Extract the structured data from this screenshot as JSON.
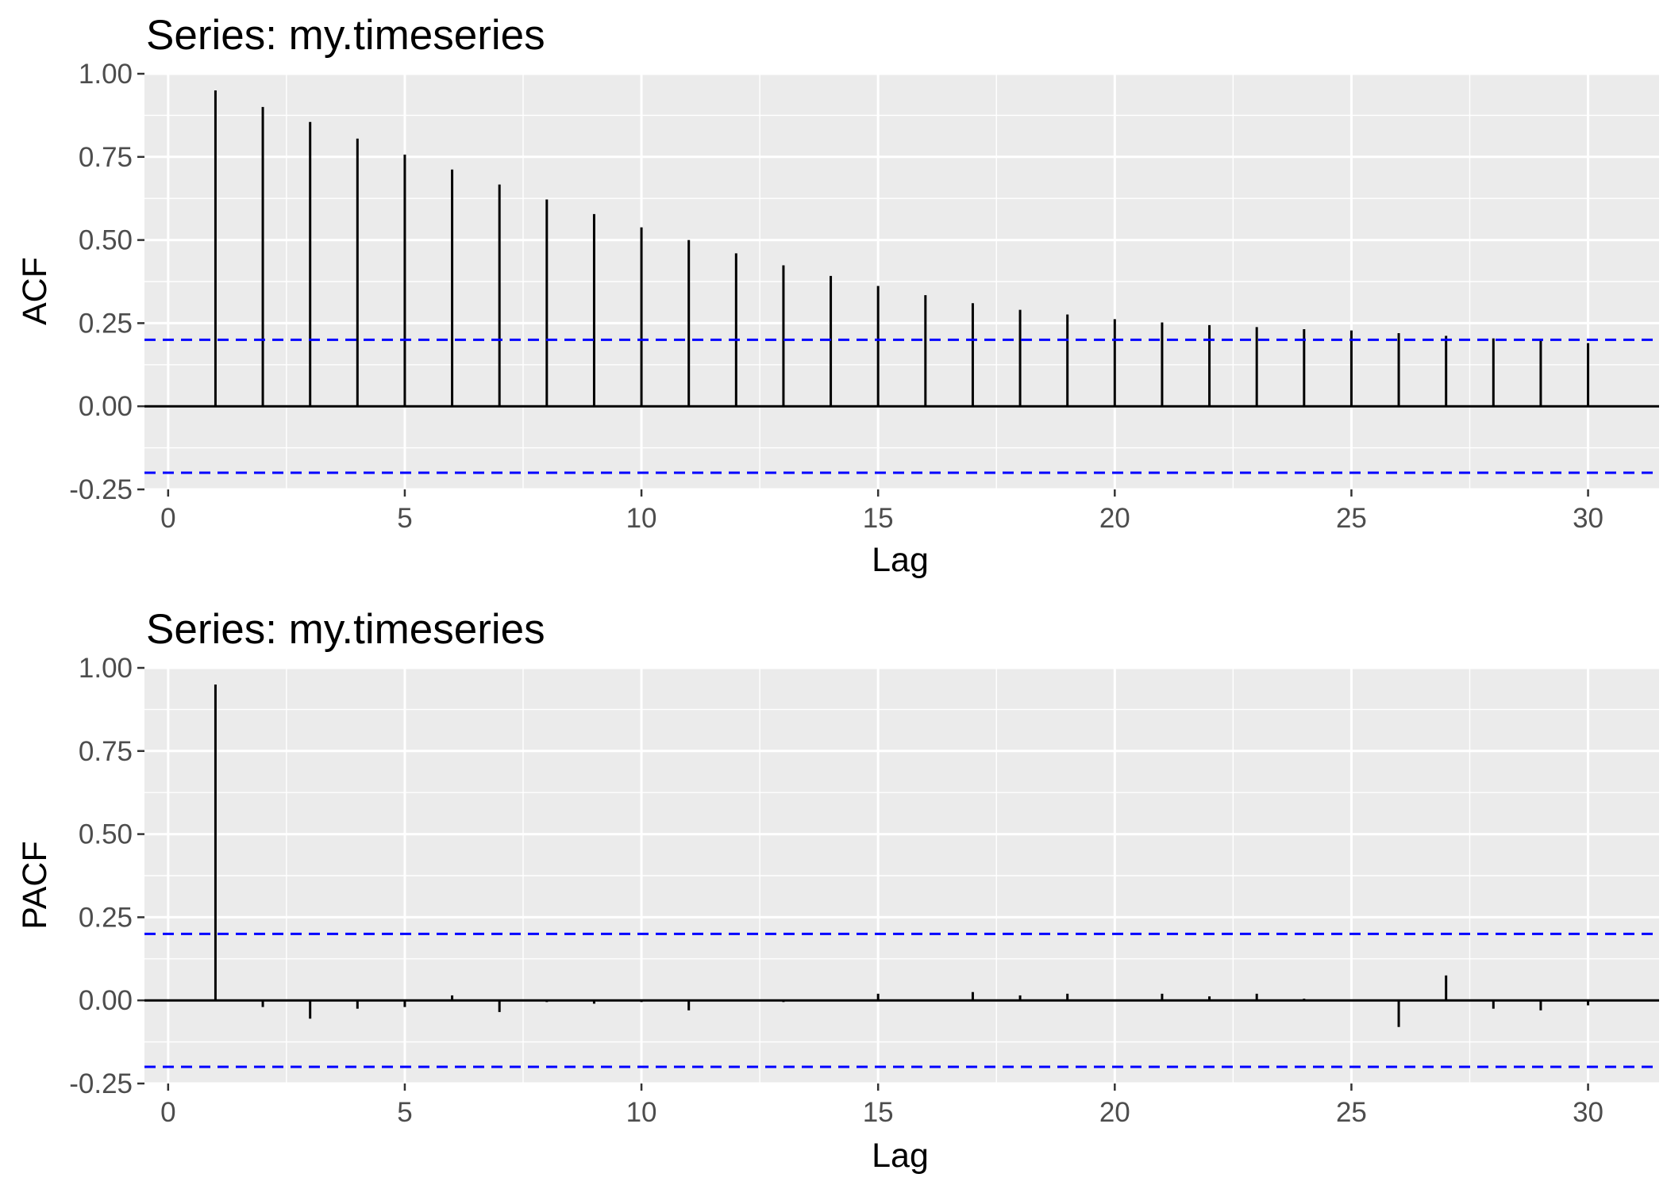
{
  "chart_data": [
    {
      "type": "bar",
      "title": "Series: my.timeseries",
      "xlabel": "Lag",
      "ylabel": "ACF",
      "xlim": [
        -0.5,
        31.5
      ],
      "ylim": [
        -0.25,
        1.0
      ],
      "x_ticks": [
        "0",
        "5",
        "10",
        "15",
        "20",
        "25",
        "30"
      ],
      "y_ticks": [
        "-0.25",
        "0.00",
        "0.25",
        "0.50",
        "0.75",
        "1.00"
      ],
      "grid": true,
      "ci_bounds": [
        0.2,
        -0.2
      ],
      "ci_color": "#0000ff",
      "lags": [
        1,
        2,
        3,
        4,
        5,
        6,
        7,
        8,
        9,
        10,
        11,
        12,
        13,
        14,
        15,
        16,
        17,
        18,
        19,
        20,
        21,
        22,
        23,
        24,
        25,
        26,
        27,
        28,
        29,
        30
      ],
      "values": [
        0.95,
        0.9,
        0.855,
        0.805,
        0.757,
        0.712,
        0.667,
        0.622,
        0.578,
        0.538,
        0.5,
        0.46,
        0.424,
        0.392,
        0.362,
        0.334,
        0.31,
        0.29,
        0.276,
        0.262,
        0.252,
        0.244,
        0.238,
        0.232,
        0.228,
        0.22,
        0.212,
        0.204,
        0.198,
        0.19
      ]
    },
    {
      "type": "bar",
      "title": "Series: my.timeseries",
      "xlabel": "Lag",
      "ylabel": "PACF",
      "xlim": [
        -0.5,
        31.5
      ],
      "ylim": [
        -0.25,
        1.0
      ],
      "x_ticks": [
        "0",
        "5",
        "10",
        "15",
        "20",
        "25",
        "30"
      ],
      "y_ticks": [
        "-0.25",
        "0.00",
        "0.25",
        "0.50",
        "0.75",
        "1.00"
      ],
      "grid": true,
      "ci_bounds": [
        0.2,
        -0.2
      ],
      "ci_color": "#0000ff",
      "lags": [
        1,
        2,
        3,
        4,
        5,
        6,
        7,
        8,
        9,
        10,
        11,
        12,
        13,
        14,
        15,
        16,
        17,
        18,
        19,
        20,
        21,
        22,
        23,
        24,
        25,
        26,
        27,
        28,
        29,
        30
      ],
      "values": [
        0.95,
        -0.02,
        -0.055,
        -0.025,
        -0.02,
        0.015,
        -0.035,
        -0.005,
        -0.01,
        -0.005,
        -0.03,
        0.0,
        -0.005,
        0.0,
        0.02,
        0.0,
        0.025,
        0.015,
        0.02,
        0.0,
        0.02,
        0.012,
        0.02,
        0.005,
        0.0,
        -0.08,
        0.075,
        -0.025,
        -0.03,
        -0.015
      ]
    }
  ]
}
